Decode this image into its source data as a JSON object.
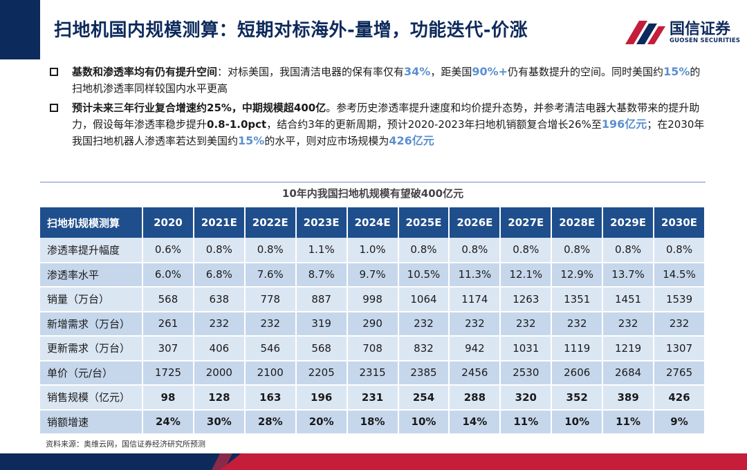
{
  "header": {
    "title": "扫地机国内规模测算：短期对标海外-量增，功能迭代-价涨",
    "logo_cn": "国信证券",
    "logo_en": "GUOSEN SECURITIES"
  },
  "bullets": [
    {
      "parts": [
        {
          "t": "基数和渗透率均有仍有提升空间",
          "s": "b"
        },
        {
          "t": "：对标美国，我国清洁电器的保有率仅有",
          "s": ""
        },
        {
          "t": "34%",
          "s": "hl"
        },
        {
          "t": "，距美国",
          "s": ""
        },
        {
          "t": "90%+",
          "s": "hl"
        },
        {
          "t": "仍有基数提升的空间。同时美国约",
          "s": ""
        },
        {
          "t": "15%",
          "s": "hl"
        },
        {
          "t": "的扫地机渗透率同样较国内水平更高",
          "s": ""
        }
      ]
    },
    {
      "parts": [
        {
          "t": "预计未来三年行业复合增速约25%，中期规模超400亿",
          "s": "b"
        },
        {
          "t": "。参考历史渗透率提升速度和均价提升态势，并参考清洁电器大基数带来的提升助力，假设每年渗透率稳步提升",
          "s": ""
        },
        {
          "t": "0.8-1.0pct",
          "s": "b"
        },
        {
          "t": "，结合约3年的更新周期，预计2020-2023年扫地机销额复合增长26%至",
          "s": ""
        },
        {
          "t": "196亿元",
          "s": "hl"
        },
        {
          "t": "；在2030年我国扫地机器人渗透率若达到美国约",
          "s": ""
        },
        {
          "t": "15%",
          "s": "hl"
        },
        {
          "t": "的水平，则对应市场规模为",
          "s": ""
        },
        {
          "t": "426亿元",
          "s": "hl"
        }
      ]
    }
  ],
  "table": {
    "title": "10年内我国扫地机规模有望破400亿元",
    "corner": "扫地机规模测算",
    "years": [
      "2020",
      "2021E",
      "2022E",
      "2023E",
      "2024E",
      "2025E",
      "2026E",
      "2027E",
      "2028E",
      "2029E",
      "2030E"
    ],
    "rows": [
      {
        "label": "渗透率提升幅度",
        "bold": false,
        "values": [
          "0.6%",
          "0.8%",
          "0.8%",
          "1.1%",
          "1.0%",
          "0.8%",
          "0.8%",
          "0.8%",
          "0.8%",
          "0.8%",
          "0.8%"
        ]
      },
      {
        "label": "渗透率水平",
        "bold": false,
        "values": [
          "6.0%",
          "6.8%",
          "7.6%",
          "8.7%",
          "9.7%",
          "10.5%",
          "11.3%",
          "12.1%",
          "12.9%",
          "13.7%",
          "14.5%"
        ]
      },
      {
        "label": "销量（万台）",
        "bold": false,
        "values": [
          "568",
          "638",
          "778",
          "887",
          "998",
          "1064",
          "1174",
          "1263",
          "1351",
          "1451",
          "1539"
        ]
      },
      {
        "label": "新增需求（万台）",
        "bold": false,
        "values": [
          "261",
          "232",
          "232",
          "319",
          "290",
          "232",
          "232",
          "232",
          "232",
          "232",
          "232"
        ]
      },
      {
        "label": "更新需求（万台）",
        "bold": false,
        "values": [
          "307",
          "406",
          "546",
          "568",
          "708",
          "832",
          "942",
          "1031",
          "1119",
          "1219",
          "1307"
        ]
      },
      {
        "label": "单价（元/台）",
        "bold": false,
        "values": [
          "1725",
          "2000",
          "2100",
          "2205",
          "2315",
          "2385",
          "2456",
          "2530",
          "2606",
          "2684",
          "2765"
        ]
      },
      {
        "label": "销售规模（亿元）",
        "bold": true,
        "values": [
          "98",
          "128",
          "163",
          "196",
          "231",
          "254",
          "288",
          "320",
          "352",
          "389",
          "426"
        ]
      },
      {
        "label": "销额增速",
        "bold": true,
        "values": [
          "24%",
          "30%",
          "28%",
          "20%",
          "18%",
          "10%",
          "14%",
          "11%",
          "10%",
          "11%",
          "9%"
        ]
      }
    ]
  },
  "source": "资料来源：奥维云网，国信证券经济研究所预测",
  "colors": {
    "navy": "#0d2a5c",
    "red": "#c41e3a",
    "highlight": "#5b8fd0",
    "header_bg": "#1f4e8c"
  }
}
